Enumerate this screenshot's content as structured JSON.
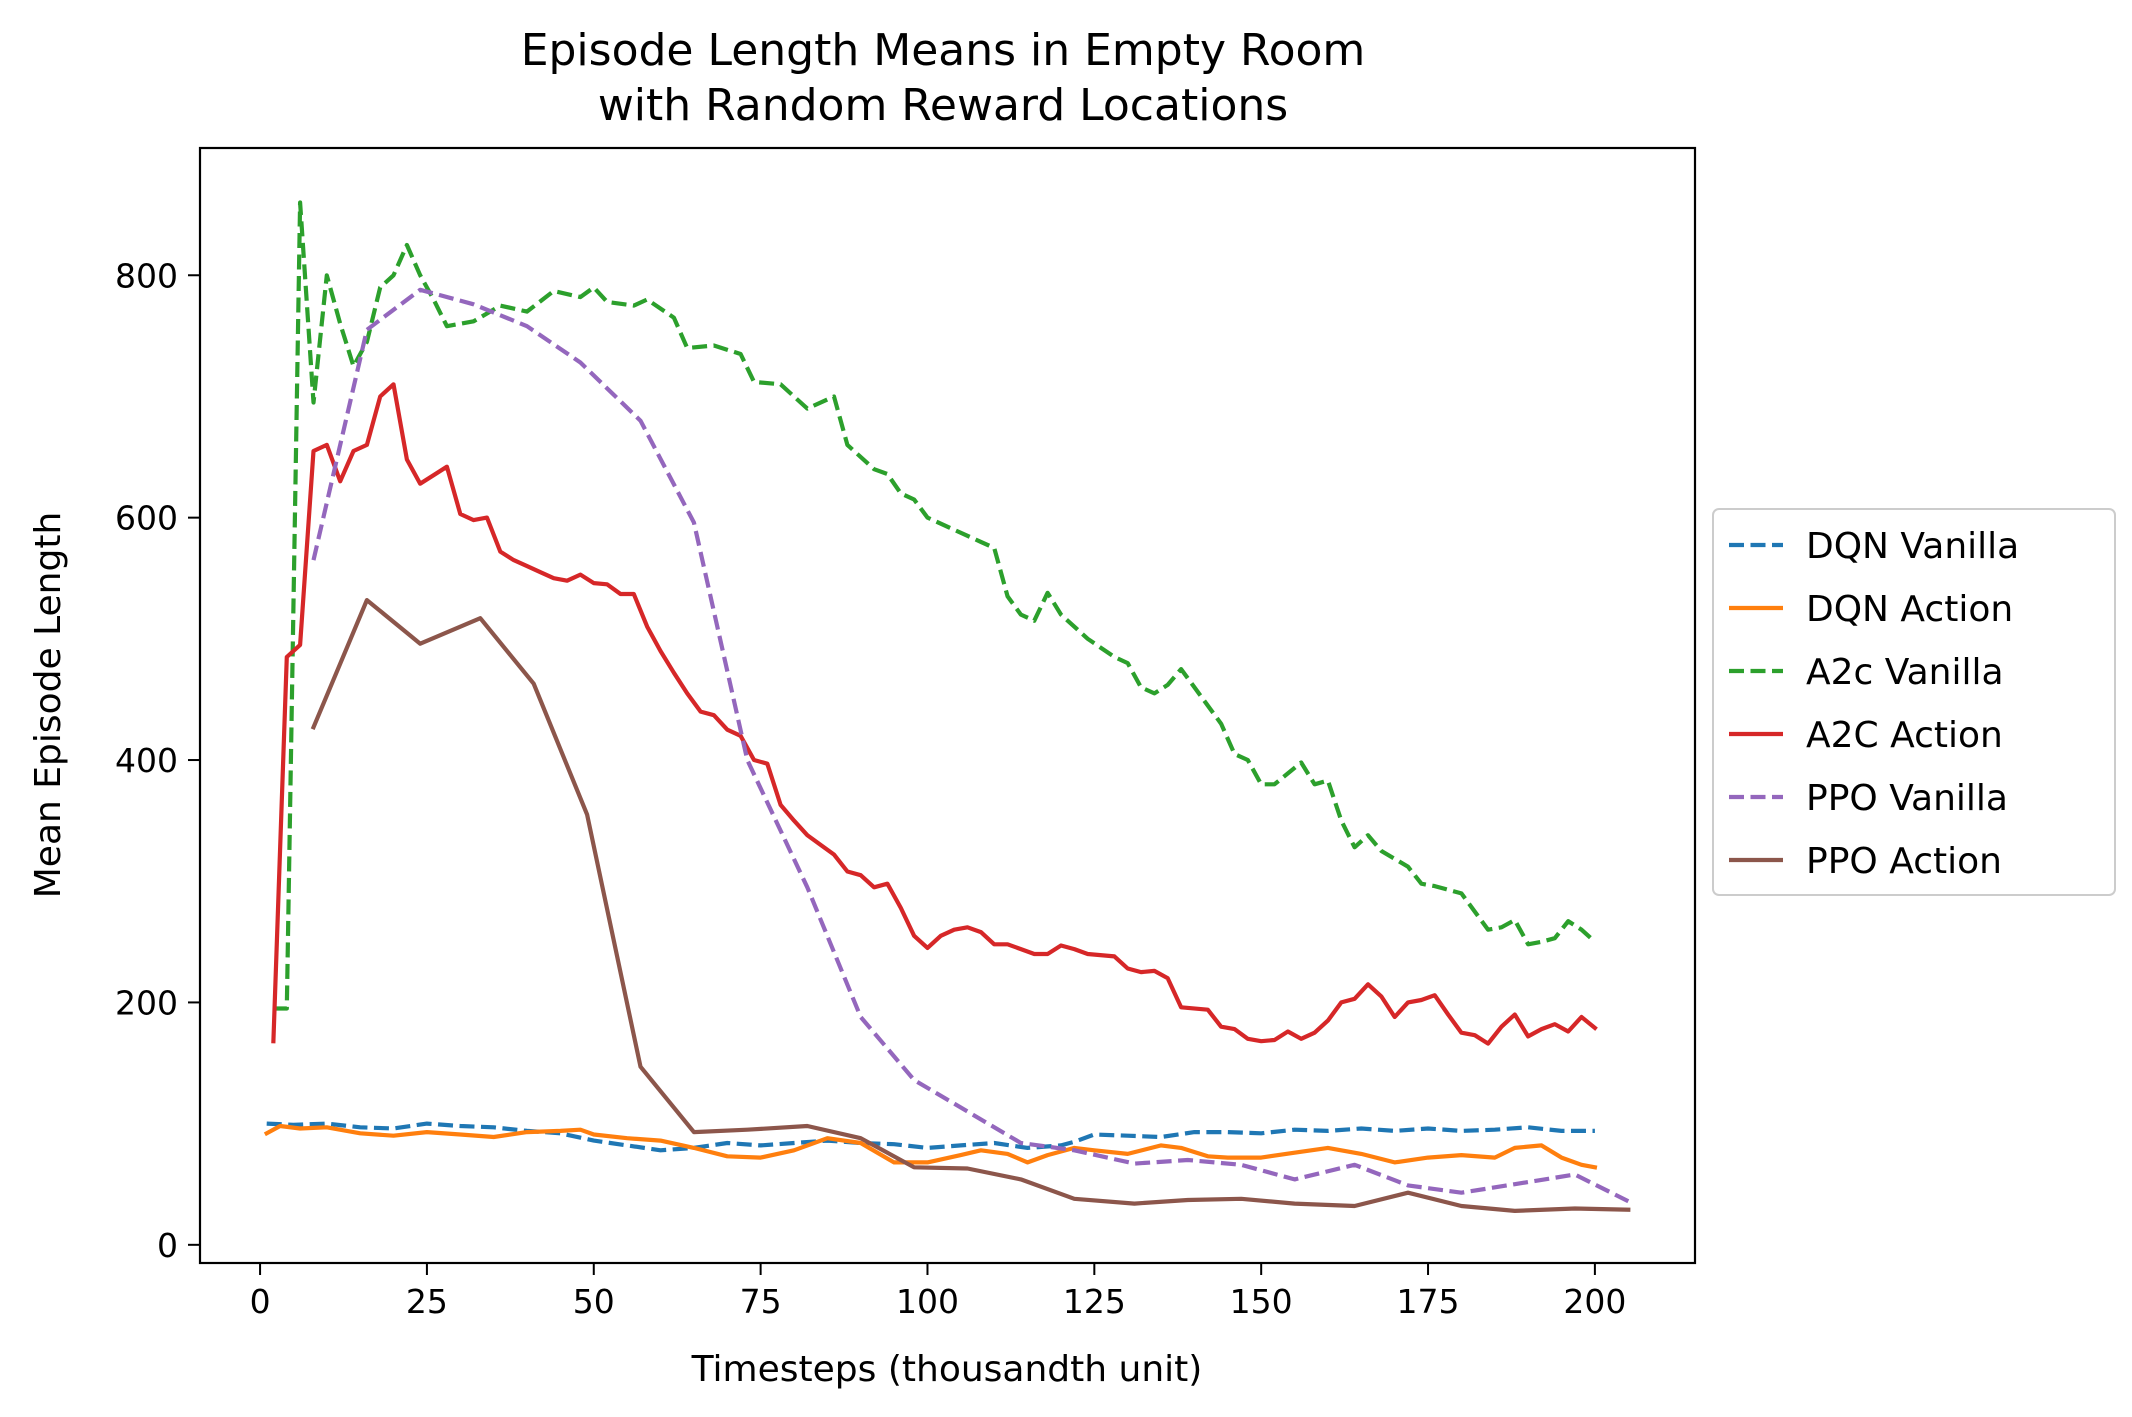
{
  "chart_data": {
    "type": "line",
    "title_lines": [
      "Episode Length Means in Empty Room",
      "with Random Reward Locations"
    ],
    "xlabel": "Timesteps (thousandth unit)",
    "ylabel": "Mean Episode Length",
    "xlim": [
      -9,
      215
    ],
    "ylim": [
      -15,
      905
    ],
    "xticks": [
      0,
      25,
      50,
      75,
      100,
      125,
      150,
      175,
      200
    ],
    "yticks": [
      0,
      200,
      400,
      600,
      800
    ],
    "legend": "outside-right",
    "series": [
      {
        "name": "DQN Vanilla",
        "color": "#1f77b4",
        "dash": true,
        "points": [
          [
            1,
            100
          ],
          [
            5,
            99
          ],
          [
            10,
            100
          ],
          [
            15,
            97
          ],
          [
            20,
            96
          ],
          [
            25,
            100
          ],
          [
            30,
            98
          ],
          [
            35,
            97
          ],
          [
            40,
            94
          ],
          [
            45,
            92
          ],
          [
            50,
            86
          ],
          [
            55,
            82
          ],
          [
            60,
            78
          ],
          [
            65,
            80
          ],
          [
            70,
            84
          ],
          [
            75,
            82
          ],
          [
            80,
            84
          ],
          [
            85,
            86
          ],
          [
            90,
            84
          ],
          [
            95,
            83
          ],
          [
            100,
            80
          ],
          [
            105,
            82
          ],
          [
            110,
            84
          ],
          [
            115,
            80
          ],
          [
            120,
            82
          ],
          [
            122,
            85
          ],
          [
            125,
            91
          ],
          [
            130,
            90
          ],
          [
            135,
            89
          ],
          [
            140,
            93
          ],
          [
            145,
            93
          ],
          [
            150,
            92
          ],
          [
            155,
            95
          ],
          [
            160,
            94
          ],
          [
            165,
            96
          ],
          [
            170,
            94
          ],
          [
            175,
            96
          ],
          [
            180,
            94
          ],
          [
            185,
            95
          ],
          [
            190,
            97
          ],
          [
            195,
            94
          ],
          [
            200,
            94
          ]
        ]
      },
      {
        "name": "DQN Action",
        "color": "#ff7f0e",
        "dash": false,
        "points": [
          [
            1,
            92
          ],
          [
            3,
            98
          ],
          [
            6,
            96
          ],
          [
            10,
            97
          ],
          [
            15,
            92
          ],
          [
            20,
            90
          ],
          [
            25,
            93
          ],
          [
            30,
            91
          ],
          [
            35,
            89
          ],
          [
            40,
            93
          ],
          [
            45,
            94
          ],
          [
            48,
            95
          ],
          [
            50,
            91
          ],
          [
            55,
            88
          ],
          [
            60,
            86
          ],
          [
            65,
            80
          ],
          [
            70,
            73
          ],
          [
            75,
            72
          ],
          [
            80,
            78
          ],
          [
            85,
            88
          ],
          [
            90,
            84
          ],
          [
            95,
            68
          ],
          [
            100,
            68
          ],
          [
            105,
            74
          ],
          [
            108,
            78
          ],
          [
            112,
            75
          ],
          [
            115,
            68
          ],
          [
            118,
            74
          ],
          [
            122,
            80
          ],
          [
            125,
            78
          ],
          [
            130,
            75
          ],
          [
            135,
            82
          ],
          [
            138,
            80
          ],
          [
            142,
            73
          ],
          [
            145,
            72
          ],
          [
            150,
            72
          ],
          [
            155,
            76
          ],
          [
            160,
            80
          ],
          [
            165,
            75
          ],
          [
            170,
            68
          ],
          [
            175,
            72
          ],
          [
            180,
            74
          ],
          [
            185,
            72
          ],
          [
            188,
            80
          ],
          [
            192,
            82
          ],
          [
            195,
            72
          ],
          [
            198,
            66
          ],
          [
            200,
            64
          ]
        ]
      },
      {
        "name": "A2c Vanilla",
        "color": "#2ca02c",
        "dash": true,
        "points": [
          [
            2,
            195
          ],
          [
            4,
            195
          ],
          [
            6,
            860
          ],
          [
            8,
            695
          ],
          [
            10,
            800
          ],
          [
            12,
            760
          ],
          [
            14,
            725
          ],
          [
            16,
            745
          ],
          [
            18,
            790
          ],
          [
            20,
            800
          ],
          [
            22,
            825
          ],
          [
            24,
            800
          ],
          [
            26,
            780
          ],
          [
            28,
            758
          ],
          [
            32,
            762
          ],
          [
            36,
            775
          ],
          [
            40,
            770
          ],
          [
            44,
            787
          ],
          [
            48,
            782
          ],
          [
            50,
            790
          ],
          [
            52,
            778
          ],
          [
            56,
            775
          ],
          [
            58,
            780
          ],
          [
            62,
            765
          ],
          [
            64,
            740
          ],
          [
            68,
            742
          ],
          [
            72,
            735
          ],
          [
            74,
            712
          ],
          [
            78,
            710
          ],
          [
            82,
            690
          ],
          [
            86,
            700
          ],
          [
            88,
            660
          ],
          [
            92,
            640
          ],
          [
            94,
            636
          ],
          [
            96,
            620
          ],
          [
            98,
            615
          ],
          [
            100,
            600
          ],
          [
            104,
            590
          ],
          [
            108,
            580
          ],
          [
            110,
            575
          ],
          [
            112,
            535
          ],
          [
            114,
            520
          ],
          [
            116,
            515
          ],
          [
            118,
            538
          ],
          [
            120,
            520
          ],
          [
            124,
            500
          ],
          [
            128,
            485
          ],
          [
            130,
            480
          ],
          [
            132,
            460
          ],
          [
            134,
            455
          ],
          [
            136,
            462
          ],
          [
            138,
            475
          ],
          [
            140,
            460
          ],
          [
            144,
            430
          ],
          [
            146,
            405
          ],
          [
            148,
            400
          ],
          [
            150,
            380
          ],
          [
            152,
            380
          ],
          [
            156,
            398
          ],
          [
            158,
            380
          ],
          [
            160,
            383
          ],
          [
            162,
            350
          ],
          [
            164,
            328
          ],
          [
            166,
            338
          ],
          [
            168,
            325
          ],
          [
            172,
            312
          ],
          [
            174,
            298
          ],
          [
            176,
            296
          ],
          [
            180,
            290
          ],
          [
            184,
            260
          ],
          [
            186,
            262
          ],
          [
            188,
            268
          ],
          [
            190,
            248
          ],
          [
            192,
            250
          ],
          [
            194,
            253
          ],
          [
            196,
            267
          ],
          [
            198,
            260
          ],
          [
            200,
            250
          ]
        ]
      },
      {
        "name": "A2C Action",
        "color": "#d62728",
        "dash": false,
        "points": [
          [
            2,
            168
          ],
          [
            4,
            485
          ],
          [
            6,
            495
          ],
          [
            8,
            655
          ],
          [
            10,
            660
          ],
          [
            12,
            630
          ],
          [
            14,
            655
          ],
          [
            16,
            660
          ],
          [
            18,
            700
          ],
          [
            20,
            710
          ],
          [
            22,
            648
          ],
          [
            24,
            628
          ],
          [
            26,
            635
          ],
          [
            28,
            642
          ],
          [
            30,
            603
          ],
          [
            32,
            598
          ],
          [
            34,
            600
          ],
          [
            36,
            572
          ],
          [
            38,
            565
          ],
          [
            40,
            560
          ],
          [
            42,
            555
          ],
          [
            44,
            550
          ],
          [
            46,
            548
          ],
          [
            48,
            553
          ],
          [
            50,
            546
          ],
          [
            52,
            545
          ],
          [
            54,
            537
          ],
          [
            56,
            537
          ],
          [
            58,
            510
          ],
          [
            60,
            490
          ],
          [
            62,
            472
          ],
          [
            64,
            455
          ],
          [
            66,
            440
          ],
          [
            68,
            437
          ],
          [
            70,
            425
          ],
          [
            72,
            420
          ],
          [
            74,
            400
          ],
          [
            76,
            397
          ],
          [
            78,
            363
          ],
          [
            80,
            350
          ],
          [
            82,
            338
          ],
          [
            84,
            330
          ],
          [
            86,
            322
          ],
          [
            88,
            308
          ],
          [
            90,
            305
          ],
          [
            92,
            295
          ],
          [
            94,
            298
          ],
          [
            96,
            278
          ],
          [
            98,
            255
          ],
          [
            100,
            245
          ],
          [
            102,
            255
          ],
          [
            104,
            260
          ],
          [
            106,
            262
          ],
          [
            108,
            258
          ],
          [
            110,
            248
          ],
          [
            112,
            248
          ],
          [
            114,
            244
          ],
          [
            116,
            240
          ],
          [
            118,
            240
          ],
          [
            120,
            247
          ],
          [
            122,
            244
          ],
          [
            124,
            240
          ],
          [
            128,
            238
          ],
          [
            130,
            228
          ],
          [
            132,
            225
          ],
          [
            134,
            226
          ],
          [
            136,
            220
          ],
          [
            138,
            196
          ],
          [
            142,
            194
          ],
          [
            144,
            180
          ],
          [
            146,
            178
          ],
          [
            148,
            170
          ],
          [
            150,
            168
          ],
          [
            152,
            169
          ],
          [
            154,
            176
          ],
          [
            156,
            170
          ],
          [
            158,
            175
          ],
          [
            160,
            185
          ],
          [
            162,
            200
          ],
          [
            164,
            203
          ],
          [
            166,
            215
          ],
          [
            168,
            205
          ],
          [
            170,
            188
          ],
          [
            172,
            200
          ],
          [
            174,
            202
          ],
          [
            176,
            206
          ],
          [
            178,
            190
          ],
          [
            180,
            175
          ],
          [
            182,
            173
          ],
          [
            184,
            166
          ],
          [
            186,
            180
          ],
          [
            188,
            190
          ],
          [
            190,
            172
          ],
          [
            192,
            178
          ],
          [
            194,
            182
          ],
          [
            196,
            176
          ],
          [
            198,
            188
          ],
          [
            200,
            179
          ]
        ]
      },
      {
        "name": "PPO Vanilla",
        "color": "#9467bd",
        "dash": true,
        "points": [
          [
            8,
            565
          ],
          [
            12,
            660
          ],
          [
            16,
            755
          ],
          [
            24,
            788
          ],
          [
            32,
            776
          ],
          [
            40,
            758
          ],
          [
            48,
            728
          ],
          [
            57,
            680
          ],
          [
            65,
            596
          ],
          [
            73,
            400
          ],
          [
            82,
            295
          ],
          [
            90,
            188
          ],
          [
            98,
            136
          ],
          [
            106,
            110
          ],
          [
            114,
            84
          ],
          [
            122,
            78
          ],
          [
            131,
            67
          ],
          [
            139,
            70
          ],
          [
            147,
            66
          ],
          [
            155,
            54
          ],
          [
            164,
            66
          ],
          [
            172,
            49
          ],
          [
            180,
            43
          ],
          [
            188,
            50
          ],
          [
            197,
            58
          ],
          [
            205,
            36
          ]
        ]
      },
      {
        "name": "PPO Action",
        "color": "#8c564b",
        "dash": false,
        "points": [
          [
            8,
            427
          ],
          [
            16,
            532
          ],
          [
            24,
            496
          ],
          [
            33,
            517
          ],
          [
            41,
            463
          ],
          [
            49,
            355
          ],
          [
            57,
            147
          ],
          [
            65,
            93
          ],
          [
            73,
            95
          ],
          [
            82,
            98
          ],
          [
            90,
            88
          ],
          [
            98,
            64
          ],
          [
            106,
            63
          ],
          [
            114,
            54
          ],
          [
            122,
            38
          ],
          [
            131,
            34
          ],
          [
            139,
            37
          ],
          [
            147,
            38
          ],
          [
            155,
            34
          ],
          [
            164,
            32
          ],
          [
            172,
            43
          ],
          [
            180,
            32
          ],
          [
            188,
            28
          ],
          [
            197,
            30
          ],
          [
            205,
            29
          ]
        ]
      }
    ]
  }
}
